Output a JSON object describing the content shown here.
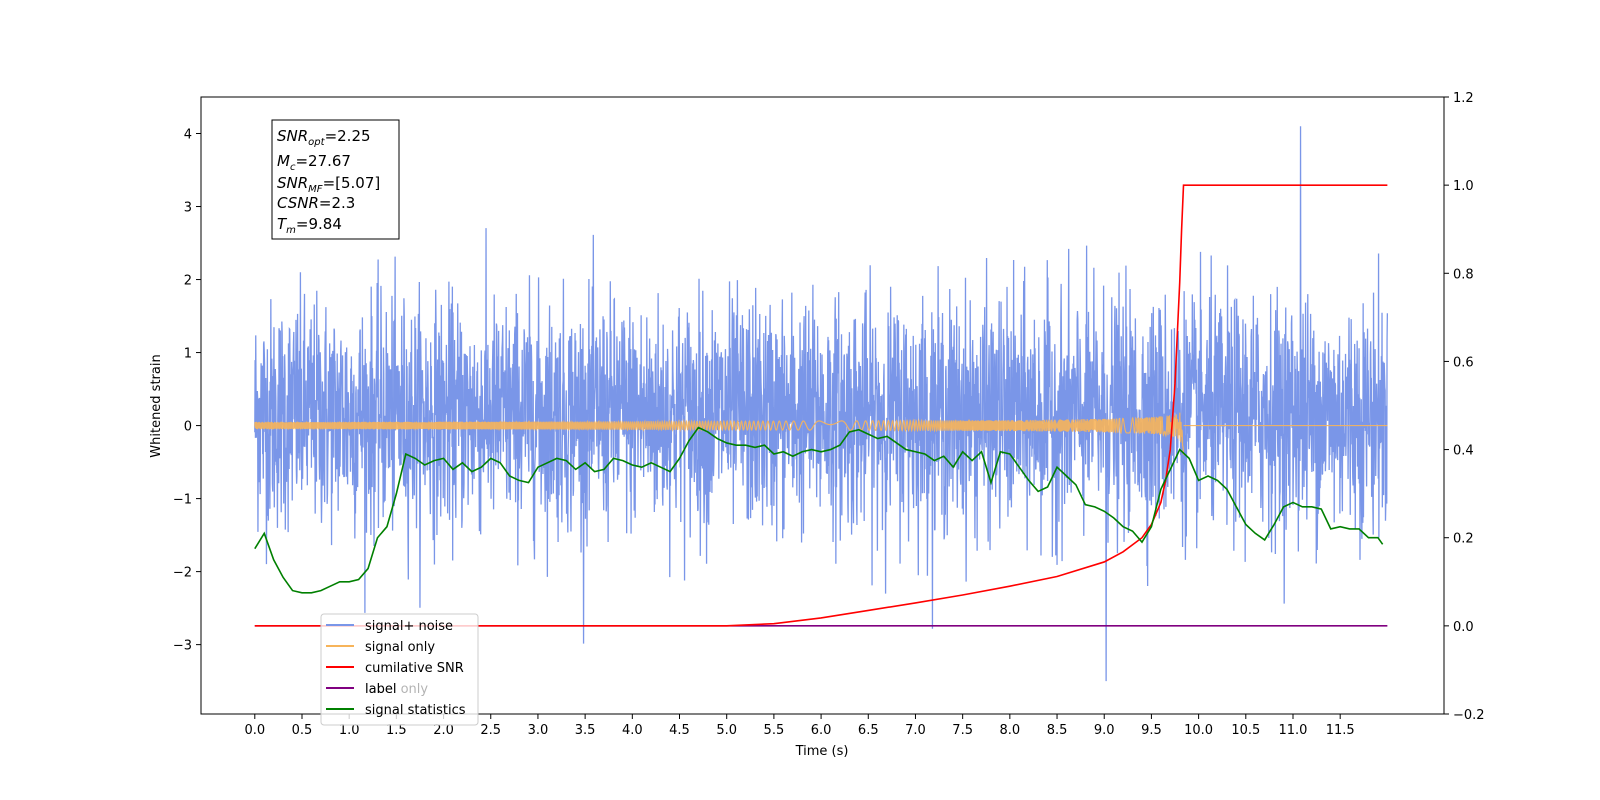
{
  "chart_data": {
    "type": "line",
    "xlabel": "Time (s)",
    "ylabel": "Whitened strain",
    "xlim": [
      -0.57,
      12.6
    ],
    "ylim_left": [
      -3.95,
      4.5
    ],
    "ylim_right": [
      -0.2,
      1.2
    ],
    "x_ticks": [
      0.0,
      0.5,
      1.0,
      1.5,
      2.0,
      2.5,
      3.0,
      3.5,
      4.0,
      4.5,
      5.0,
      5.5,
      6.0,
      6.5,
      7.0,
      7.5,
      8.0,
      8.5,
      9.0,
      9.5,
      10.0,
      10.5,
      11.0,
      11.5
    ],
    "x_tick_labels": [
      "0.0",
      "0.5",
      "1.0",
      "1.5",
      "2.0",
      "2.5",
      "3.0",
      "3.5",
      "4.0",
      "4.5",
      "5.0",
      "5.5",
      "6.0",
      "6.5",
      "7.0",
      "7.5",
      "8.0",
      "8.5",
      "9.0",
      "9.5",
      "10.0",
      "10.5",
      "11.0",
      "11.5"
    ],
    "y_left_ticks": [
      -3,
      -2,
      -1,
      0,
      1,
      2,
      3,
      4
    ],
    "y_left_tick_labels": [
      "−3",
      "−2",
      "−1",
      "0",
      "1",
      "2",
      "3",
      "4"
    ],
    "y_right_ticks": [
      -0.2,
      0.0,
      0.2,
      0.4,
      0.6,
      0.8,
      1.0,
      1.2
    ],
    "y_right_tick_labels": [
      "−0.2",
      "0.0",
      "0.2",
      "0.4",
      "0.6",
      "0.8",
      "1.0",
      "1.2"
    ],
    "grid": false,
    "legend_position": "bottom-left",
    "annotation": {
      "lines": [
        {
          "var": "SNR",
          "sub": "opt",
          "value": "=2.25"
        },
        {
          "var": "M",
          "sub": "c",
          "value": "=27.67"
        },
        {
          "var": "SNR",
          "sub": "MF",
          "value": "=[5.07]"
        },
        {
          "var": "CSNR",
          "sub": "",
          "value": "=2.3"
        },
        {
          "var": "T",
          "sub": "m",
          "value": "=9.84"
        }
      ]
    },
    "series": [
      {
        "name": "signal+ noise",
        "color": "#7a96e8",
        "axis": "left",
        "kind": "noise",
        "x_range": [
          0.0,
          12.0
        ],
        "std": 0.78,
        "y_extremes": [
          4.1,
          -3.5
        ]
      },
      {
        "name": "signal only",
        "color": "#f7b45a",
        "axis": "left",
        "kind": "chirp",
        "x_range": [
          0.0,
          9.84
        ],
        "peak_amplitude": 0.42,
        "merger_time": 9.84
      },
      {
        "name": "cumilative SNR",
        "color": "#ff0000",
        "axis": "right",
        "x": [
          0.0,
          5.0,
          5.5,
          6.0,
          6.5,
          7.0,
          7.5,
          8.0,
          8.5,
          9.0,
          9.2,
          9.4,
          9.5,
          9.6,
          9.65,
          9.7,
          9.75,
          9.8,
          9.82,
          9.84,
          12.0
        ],
        "values": [
          0.0,
          0.0,
          0.005,
          0.018,
          0.035,
          0.052,
          0.07,
          0.09,
          0.112,
          0.145,
          0.168,
          0.2,
          0.23,
          0.28,
          0.33,
          0.4,
          0.55,
          0.78,
          0.9,
          1.0,
          1.0
        ]
      },
      {
        "name": "label",
        "color": "#800080",
        "axis": "right",
        "x": [
          0.0,
          12.0
        ],
        "values": [
          0.0,
          0.0
        ]
      },
      {
        "name": "label only",
        "color": "#b0b0b0",
        "axis": "right",
        "x": [],
        "values": []
      },
      {
        "name": "signal statistics",
        "color": "#008000",
        "axis": "right",
        "x": [
          0.0,
          0.1,
          0.2,
          0.3,
          0.4,
          0.5,
          0.6,
          0.7,
          0.8,
          0.9,
          1.0,
          1.1,
          1.2,
          1.3,
          1.4,
          1.5,
          1.6,
          1.7,
          1.8,
          1.9,
          2.0,
          2.1,
          2.2,
          2.3,
          2.4,
          2.5,
          2.6,
          2.7,
          2.8,
          2.9,
          3.0,
          3.1,
          3.2,
          3.3,
          3.4,
          3.5,
          3.6,
          3.7,
          3.8,
          3.9,
          4.0,
          4.1,
          4.2,
          4.3,
          4.4,
          4.5,
          4.6,
          4.7,
          4.8,
          4.9,
          5.0,
          5.1,
          5.2,
          5.3,
          5.4,
          5.5,
          5.6,
          5.7,
          5.8,
          5.9,
          6.0,
          6.1,
          6.2,
          6.3,
          6.4,
          6.5,
          6.6,
          6.7,
          6.8,
          6.9,
          7.0,
          7.1,
          7.2,
          7.3,
          7.4,
          7.5,
          7.6,
          7.7,
          7.8,
          7.9,
          8.0,
          8.1,
          8.2,
          8.3,
          8.4,
          8.5,
          8.6,
          8.7,
          8.8,
          8.9,
          9.0,
          9.1,
          9.2,
          9.3,
          9.4,
          9.5,
          9.6,
          9.7,
          9.8,
          9.9,
          10.0,
          10.1,
          10.2,
          10.3,
          10.4,
          10.5,
          10.6,
          10.7,
          10.8,
          10.9,
          11.0,
          11.1,
          11.2,
          11.3,
          11.4,
          11.5,
          11.6,
          11.7,
          11.8,
          11.9,
          11.95
        ],
        "values": [
          0.175,
          0.21,
          0.15,
          0.11,
          0.08,
          0.075,
          0.075,
          0.08,
          0.09,
          0.1,
          0.1,
          0.105,
          0.13,
          0.2,
          0.225,
          0.3,
          0.39,
          0.38,
          0.365,
          0.375,
          0.38,
          0.355,
          0.37,
          0.35,
          0.36,
          0.38,
          0.37,
          0.34,
          0.33,
          0.325,
          0.36,
          0.37,
          0.38,
          0.375,
          0.355,
          0.37,
          0.35,
          0.355,
          0.38,
          0.375,
          0.365,
          0.36,
          0.37,
          0.36,
          0.35,
          0.38,
          0.42,
          0.45,
          0.44,
          0.425,
          0.415,
          0.41,
          0.41,
          0.405,
          0.41,
          0.39,
          0.395,
          0.385,
          0.395,
          0.4,
          0.395,
          0.4,
          0.41,
          0.44,
          0.445,
          0.435,
          0.425,
          0.43,
          0.415,
          0.4,
          0.395,
          0.39,
          0.375,
          0.385,
          0.36,
          0.395,
          0.375,
          0.395,
          0.325,
          0.395,
          0.39,
          0.36,
          0.33,
          0.305,
          0.315,
          0.36,
          0.34,
          0.32,
          0.275,
          0.27,
          0.26,
          0.245,
          0.225,
          0.215,
          0.19,
          0.225,
          0.31,
          0.355,
          0.4,
          0.38,
          0.33,
          0.34,
          0.33,
          0.31,
          0.27,
          0.23,
          0.21,
          0.195,
          0.23,
          0.27,
          0.28,
          0.27,
          0.27,
          0.265,
          0.22,
          0.225,
          0.22,
          0.22,
          0.2,
          0.2,
          0.185
        ]
      }
    ]
  }
}
